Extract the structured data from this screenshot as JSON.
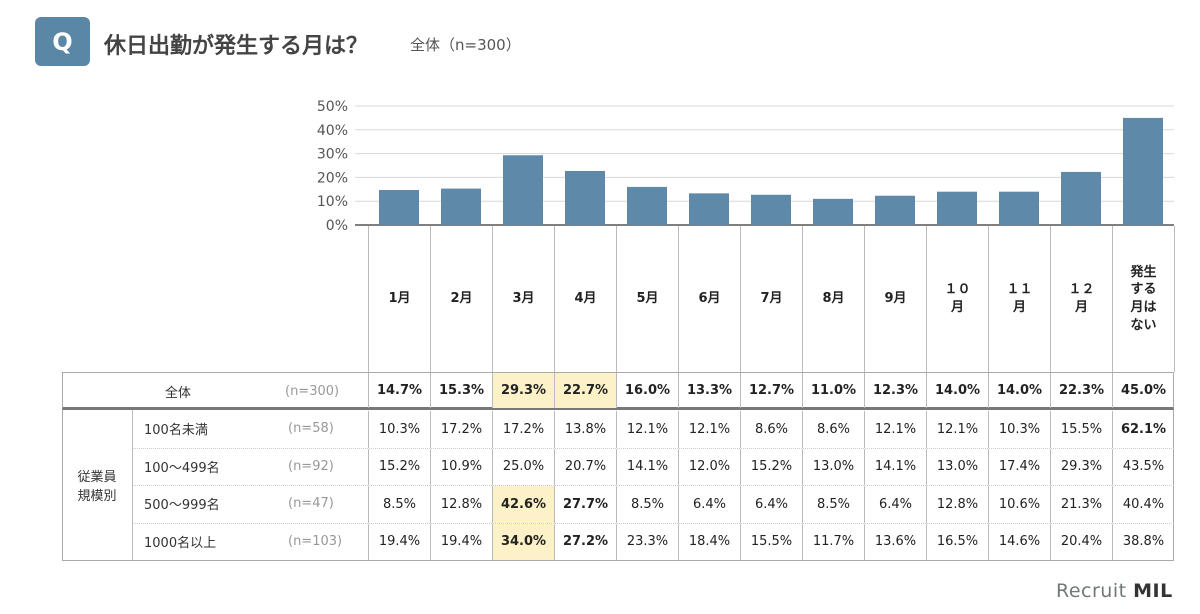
{
  "header": {
    "badge": "Q",
    "title": "休日出勤が発生する月は？",
    "subtitle": "全体（n=300）"
  },
  "colors": {
    "bar": "#5f89a8",
    "highlight": "#fdf1c8",
    "badge": "#5b87a6"
  },
  "chart_data": {
    "type": "bar",
    "categories": [
      "1月",
      "2月",
      "3月",
      "4月",
      "5月",
      "6月",
      "7月",
      "8月",
      "9月",
      "１０月",
      "１１月",
      "１２月",
      "発生する月はない"
    ],
    "values": [
      14.7,
      15.3,
      29.3,
      22.7,
      16.0,
      13.3,
      12.7,
      11.0,
      12.3,
      14.0,
      14.0,
      22.3,
      45.0
    ],
    "ylim": [
      0,
      50
    ],
    "yticks": [
      "0%",
      "10%",
      "20%",
      "30%",
      "40%",
      "50%"
    ],
    "grid": true
  },
  "table": {
    "total": {
      "label": "全体",
      "n": "(n=300)",
      "values": [
        "14.7%",
        "15.3%",
        "29.3%",
        "22.7%",
        "16.0%",
        "13.3%",
        "12.7%",
        "11.0%",
        "12.3%",
        "14.0%",
        "14.0%",
        "22.3%",
        "45.0%"
      ],
      "highlight": [
        2,
        3
      ]
    },
    "group_label": "従業員\n規模別",
    "rows": [
      {
        "label": "100名未満",
        "n": "(n=58)",
        "values": [
          "10.3%",
          "17.2%",
          "17.2%",
          "13.8%",
          "12.1%",
          "12.1%",
          "8.6%",
          "8.6%",
          "12.1%",
          "12.1%",
          "10.3%",
          "15.5%",
          "62.1%"
        ],
        "bold": [
          12
        ],
        "highlight": []
      },
      {
        "label": "100〜499名",
        "n": "(n=92)",
        "values": [
          "15.2%",
          "10.9%",
          "25.0%",
          "20.7%",
          "14.1%",
          "12.0%",
          "15.2%",
          "13.0%",
          "14.1%",
          "13.0%",
          "17.4%",
          "29.3%",
          "43.5%"
        ],
        "bold": [],
        "highlight": []
      },
      {
        "label": "500〜999名",
        "n": "(n=47)",
        "values": [
          "8.5%",
          "12.8%",
          "42.6%",
          "27.7%",
          "8.5%",
          "6.4%",
          "6.4%",
          "8.5%",
          "6.4%",
          "12.8%",
          "10.6%",
          "21.3%",
          "40.4%"
        ],
        "bold": [
          2,
          3
        ],
        "highlight": [
          2
        ]
      },
      {
        "label": "1000名以上",
        "n": "(n=103)",
        "values": [
          "19.4%",
          "19.4%",
          "34.0%",
          "27.2%",
          "23.3%",
          "18.4%",
          "15.5%",
          "11.7%",
          "13.6%",
          "16.5%",
          "14.6%",
          "20.4%",
          "38.8%"
        ],
        "bold": [
          2,
          3
        ],
        "highlight": [
          2
        ]
      }
    ]
  },
  "logo": {
    "text1": "Recruit",
    "text2": "MIL"
  }
}
